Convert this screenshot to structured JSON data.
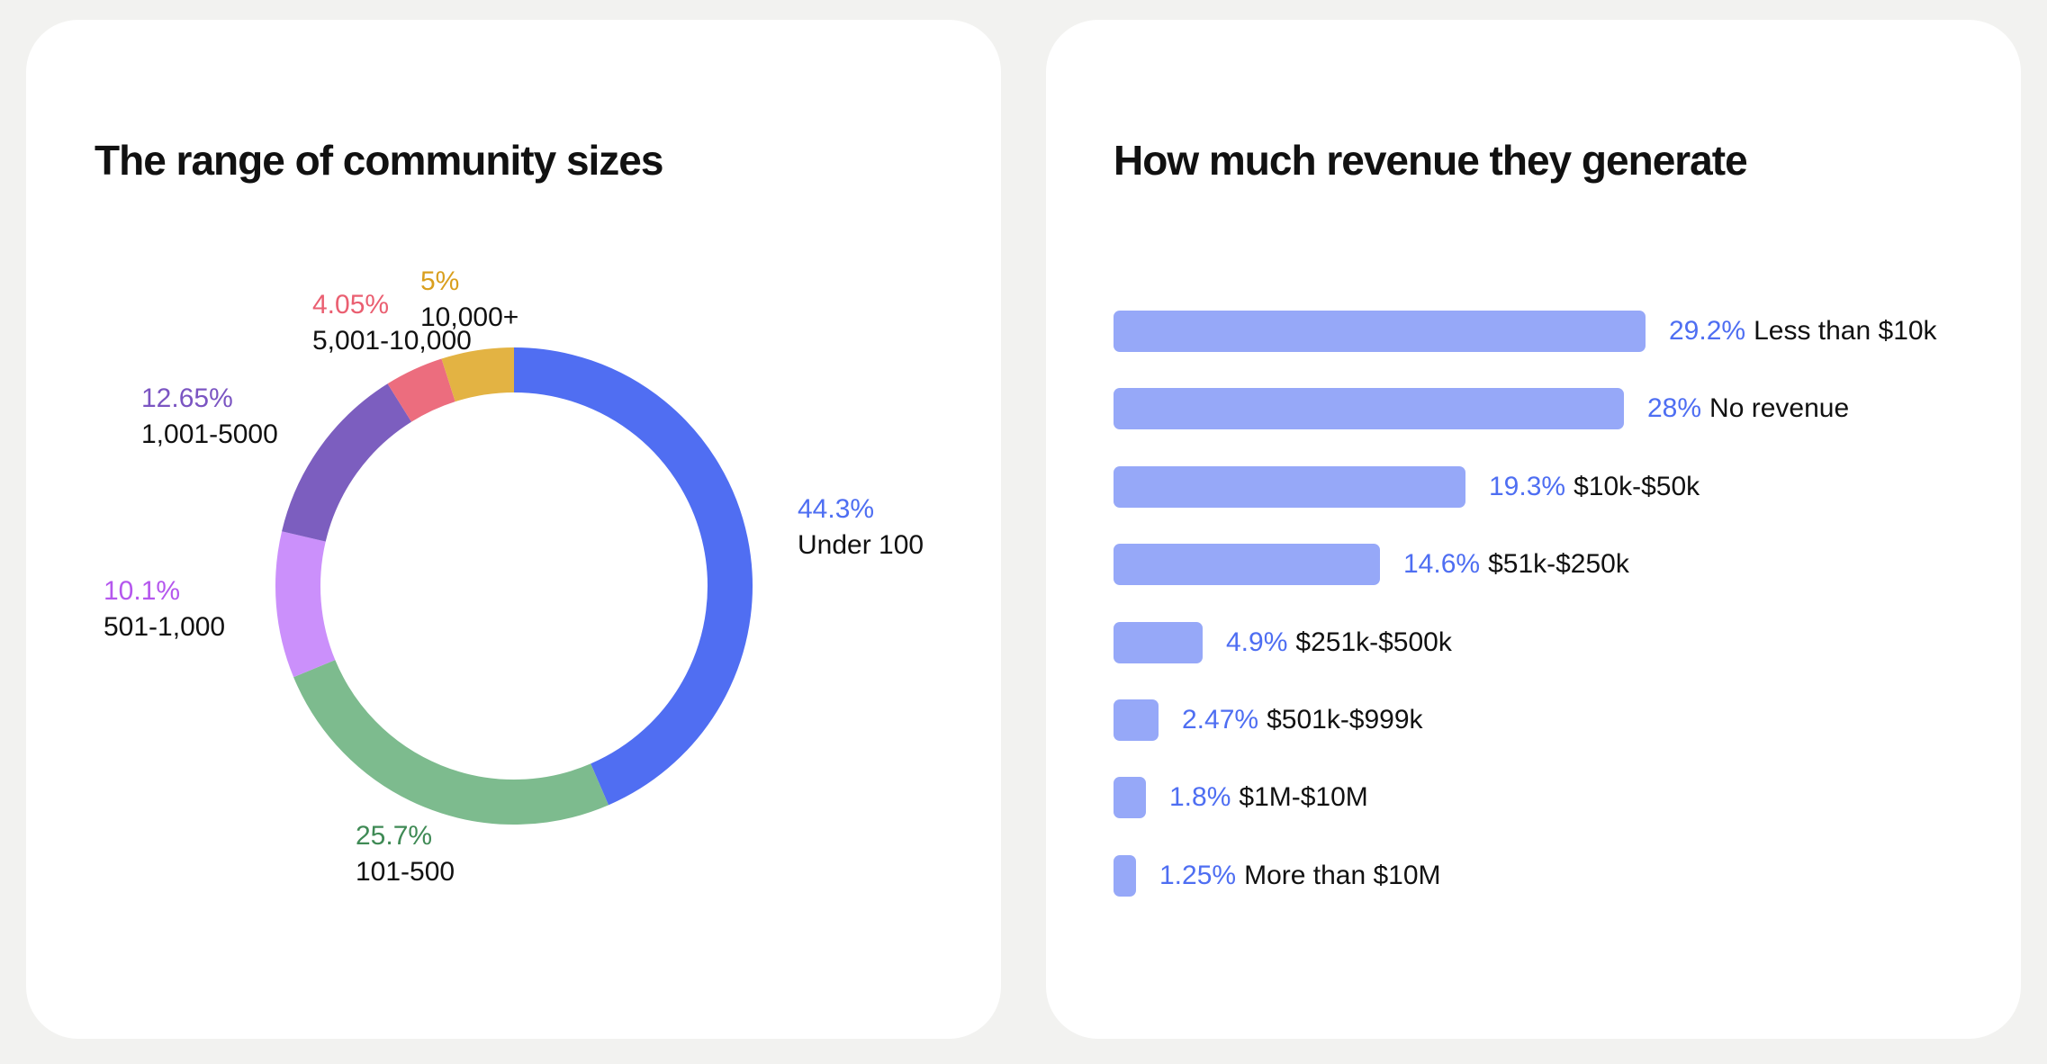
{
  "left_card": {
    "title": "The range of community sizes"
  },
  "right_card": {
    "title": "How much revenue they generate"
  },
  "chart_data": [
    {
      "type": "pie",
      "title": "The range of community sizes",
      "donut": true,
      "start": "top, clockwise",
      "slices": [
        {
          "pct_label": "44.3%",
          "value": 44.3,
          "label": "Under 100",
          "color": "#506ef2",
          "label_color": "#4e6ef2"
        },
        {
          "pct_label": "25.7%",
          "value": 25.7,
          "label": "101-500",
          "color": "#7dbb8e",
          "label_color": "#3f8a55"
        },
        {
          "pct_label": "10.1%",
          "value": 10.1,
          "label": "501-1,000",
          "color": "#cb90fb",
          "label_color": "#b557ee"
        },
        {
          "pct_label": "12.65%",
          "value": 12.65,
          "label": "1,001-5000",
          "color": "#7c5ebf",
          "label_color": "#7b55c2"
        },
        {
          "pct_label": "4.05%",
          "value": 4.05,
          "label": "5,001-10,000",
          "color": "#ec6d7e",
          "label_color": "#ea5f71"
        },
        {
          "pct_label": "5%",
          "value": 5,
          "label": "10,000+",
          "color": "#e3b343",
          "label_color": "#d99f1e"
        }
      ]
    },
    {
      "type": "bar",
      "orientation": "horizontal",
      "title": "How much revenue they generate",
      "xlim": [
        0,
        29.2
      ],
      "bar_color": "#96a8f8",
      "value_color": "#4e6ef2",
      "categories": [
        "Less than $10k",
        "No revenue",
        "$10k-$50k",
        "$51k-$250k",
        "$251k-$500k",
        "$501k-$999k",
        "$1M-$10M",
        "More than $10M"
      ],
      "values": [
        29.2,
        28,
        19.3,
        14.6,
        4.9,
        2.47,
        1.8,
        1.25
      ],
      "value_labels": [
        "29.2%",
        "28%",
        "19.3%",
        "14.6%",
        "4.9%",
        "2.47%",
        "1.8%",
        "1.25%"
      ]
    }
  ]
}
